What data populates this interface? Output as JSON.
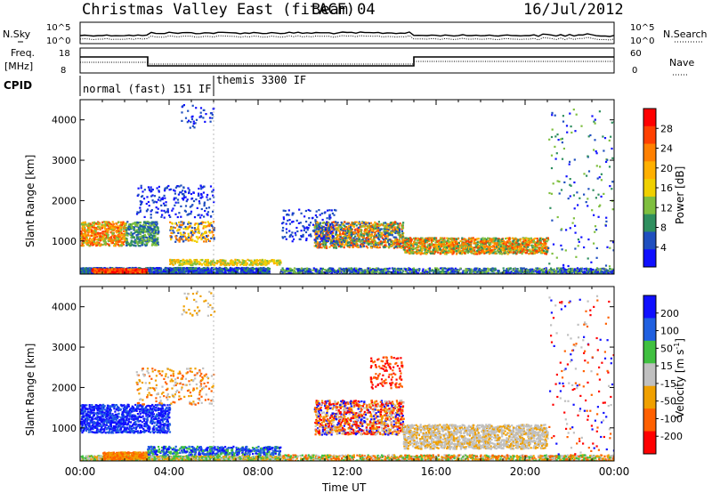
{
  "header": {
    "title": "Christmas Valley East (fitACF)",
    "beam": "Beam 04",
    "date": "16/Jul/2012"
  },
  "chart_data": [
    {
      "type": "line",
      "panel": "noise",
      "left_label": "N.Sky",
      "right_label": "N.Search",
      "left_ticks": [
        "10^5",
        "10^0"
      ],
      "right_ticks": [
        "10^5",
        "10^0"
      ],
      "legend": "N.Search ........"
    },
    {
      "type": "line",
      "panel": "frequency",
      "left_label": [
        "Freq.",
        "[MHz]"
      ],
      "left_ticks": [
        "18",
        "8"
      ],
      "right_ticks": [
        "60",
        "0"
      ],
      "right_label": "Nave",
      "legend": "Nave ...."
    },
    {
      "type": "table",
      "panel": "cpid",
      "label": "CPID",
      "segments": [
        {
          "name": "normal (fast) 151 IF",
          "start_hour": 0,
          "end_hour": 6
        },
        {
          "name": "themis 3300 IF",
          "start_hour": 6,
          "end_hour": 24
        }
      ]
    },
    {
      "type": "heatmap",
      "panel": "power",
      "ylabel": "Slant Range [km]",
      "yticks": [
        "4000",
        "3000",
        "2000",
        "1000"
      ],
      "ylim": [
        180,
        4500
      ],
      "xlim": [
        0,
        24
      ],
      "colorbar_label": "Power [dB]",
      "colorbar_ticks": [
        "28",
        "24",
        "20",
        "16",
        "12",
        "8",
        "4"
      ],
      "colorbar_colors": [
        "#ff0000",
        "#ff4000",
        "#ff8000",
        "#ffb000",
        "#f0d000",
        "#7fbf3f",
        "#2f8f5f",
        "#1f4fbf",
        "#1010ff"
      ]
    },
    {
      "type": "heatmap",
      "panel": "velocity",
      "ylabel": "Slant Range [km]",
      "yticks": [
        "4000",
        "3000",
        "2000",
        "1000"
      ],
      "ylim": [
        180,
        4500
      ],
      "xlim": [
        0,
        24
      ],
      "xlabel": "Time UT",
      "xticks": [
        "00:00",
        "04:00",
        "08:00",
        "12:00",
        "16:00",
        "20:00",
        "00:00"
      ],
      "colorbar_label": "Velocity [m s^-1]",
      "colorbar_ticks": [
        "200",
        "100",
        "50",
        "15",
        "-15",
        "-50",
        "-100",
        "-200"
      ],
      "colorbar_colors": [
        "#1010ff",
        "#2060e0",
        "#40c040",
        "#c0c0c0",
        "#f0a000",
        "#ff6000",
        "#ff0000"
      ]
    }
  ]
}
